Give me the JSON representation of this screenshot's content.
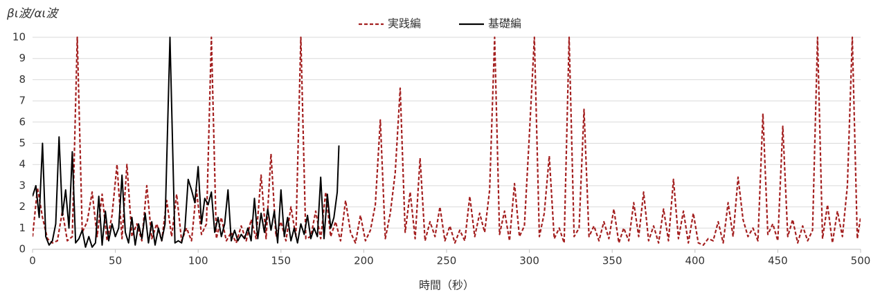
{
  "chart_data": {
    "type": "line",
    "y_label": "βι波/αι波",
    "x_label": "時間（秒）",
    "xlim": [
      0,
      500
    ],
    "xticks": [
      0,
      50,
      100,
      150,
      200,
      250,
      300,
      350,
      400,
      450,
      500
    ],
    "ylim": [
      0,
      10
    ],
    "yticks": [
      0,
      1,
      2,
      3,
      4,
      5,
      6,
      7,
      8,
      9,
      10
    ],
    "grid": true,
    "legend": "top",
    "series": [
      {
        "name": "実践編",
        "color": "#a31f1f",
        "line_style": "dashed",
        "x": [
          0,
          3,
          6,
          9,
          12,
          15,
          18,
          21,
          24,
          27,
          30,
          33,
          36,
          39,
          42,
          45,
          48,
          51,
          54,
          57,
          60,
          63,
          66,
          69,
          72,
          75,
          78,
          81,
          84,
          87,
          90,
          93,
          96,
          99,
          102,
          105,
          108,
          111,
          114,
          117,
          120,
          123,
          126,
          129,
          132,
          135,
          138,
          141,
          144,
          147,
          150,
          153,
          156,
          159,
          162,
          165,
          168,
          171,
          174,
          177,
          180,
          183,
          186,
          189,
          192,
          195,
          198,
          201,
          204,
          207,
          210,
          213,
          216,
          219,
          222,
          225,
          228,
          231,
          234,
          237,
          240,
          243,
          246,
          249,
          252,
          255,
          258,
          261,
          264,
          267,
          270,
          273,
          276,
          279,
          282,
          285,
          288,
          291,
          294,
          297,
          300,
          303,
          306,
          309,
          312,
          315,
          318,
          321,
          324,
          327,
          330,
          333,
          336,
          339,
          342,
          345,
          348,
          351,
          354,
          357,
          360,
          363,
          366,
          369,
          372,
          375,
          378,
          381,
          384,
          387,
          390,
          393,
          396,
          399,
          402,
          405,
          408,
          411,
          414,
          417,
          420,
          423,
          426,
          429,
          432,
          435,
          438,
          441,
          444,
          447,
          450,
          453,
          456,
          459,
          462,
          465,
          468,
          471,
          474,
          477,
          480,
          483,
          486,
          489,
          492,
          495,
          498,
          500
        ],
        "values": [
          0.6,
          2.9,
          1.5,
          0.5,
          0.3,
          0.4,
          1.8,
          0.4,
          0.6,
          10,
          0.8,
          1.3,
          2.7,
          0.6,
          2.6,
          0.4,
          1.6,
          4.0,
          0.5,
          4.0,
          0.6,
          1.2,
          0.4,
          3.0,
          0.5,
          1.2,
          0.4,
          2.3,
          0.6,
          2.6,
          0.4,
          1.0,
          0.4,
          2.8,
          0.7,
          1.2,
          10,
          0.5,
          1.5,
          0.4,
          0.8,
          0.3,
          1.1,
          0.4,
          1.4,
          0.5,
          3.5,
          0.5,
          4.5,
          0.6,
          1.3,
          0.4,
          2.0,
          0.6,
          10,
          0.5,
          0.6,
          1.8,
          0.5,
          2.7,
          0.6,
          1.3,
          0.4,
          2.3,
          0.8,
          0.3,
          1.6,
          0.4,
          0.9,
          2.1,
          6.1,
          0.5,
          1.7,
          3.6,
          7.6,
          0.8,
          2.7,
          0.5,
          4.3,
          0.4,
          1.3,
          0.6,
          2.0,
          0.4,
          1.1,
          0.3,
          0.9,
          0.4,
          2.5,
          0.6,
          1.7,
          0.8,
          2.8,
          10,
          0.7,
          1.8,
          0.4,
          3.1,
          0.6,
          1.1,
          5.4,
          10,
          0.6,
          1.7,
          4.4,
          0.5,
          1.0,
          0.3,
          10,
          0.6,
          1.0,
          6.6,
          0.6,
          1.1,
          0.4,
          1.3,
          0.5,
          1.9,
          0.3,
          1.0,
          0.4,
          2.2,
          0.6,
          2.7,
          0.4,
          1.1,
          0.3,
          1.9,
          0.4,
          3.3,
          0.5,
          1.8,
          0.3,
          1.7,
          0.3,
          0.2,
          0.5,
          0.4,
          1.3,
          0.3,
          2.2,
          0.6,
          3.4,
          1.4,
          0.6,
          1.0,
          0.4,
          6.4,
          0.7,
          1.2,
          0.4,
          5.8,
          0.6,
          1.4,
          0.3,
          1.1,
          0.4,
          0.9,
          10,
          0.5,
          2.1,
          0.3,
          1.8,
          0.6,
          3.0,
          10,
          0.5,
          1.5
        ]
      },
      {
        "name": "基礎編",
        "color": "#000000",
        "line_style": "solid",
        "x": [
          0,
          2,
          4,
          6,
          8,
          10,
          12,
          14,
          16,
          18,
          20,
          22,
          24,
          26,
          28,
          30,
          32,
          34,
          36,
          38,
          40,
          42,
          44,
          46,
          48,
          50,
          52,
          54,
          56,
          58,
          60,
          62,
          64,
          66,
          68,
          70,
          72,
          74,
          76,
          78,
          80,
          83,
          86,
          88,
          90,
          92,
          94,
          96,
          98,
          100,
          102,
          104,
          106,
          108,
          110,
          112,
          114,
          116,
          118,
          120,
          122,
          124,
          126,
          128,
          130,
          132,
          134,
          136,
          138,
          140,
          142,
          144,
          146,
          148,
          150,
          152,
          154,
          156,
          158,
          160,
          162,
          164,
          166,
          168,
          170,
          172,
          174,
          176,
          178,
          180,
          182,
          184,
          185
        ],
        "values": [
          2.5,
          3.0,
          1.5,
          5.0,
          0.6,
          0.2,
          0.4,
          1.2,
          5.3,
          1.6,
          2.8,
          1.0,
          4.6,
          0.3,
          0.5,
          0.9,
          0.1,
          0.6,
          0.1,
          0.3,
          2.5,
          0.2,
          1.8,
          0.4,
          1.2,
          0.6,
          1.0,
          3.5,
          0.8,
          0.3,
          1.5,
          0.2,
          1.2,
          0.5,
          1.7,
          0.3,
          1.3,
          0.2,
          1.0,
          0.4,
          1.2,
          10,
          0.3,
          0.4,
          0.3,
          1.0,
          3.3,
          2.8,
          2.2,
          3.9,
          1.2,
          2.4,
          2.1,
          2.7,
          0.8,
          1.5,
          0.6,
          1.2,
          2.8,
          0.4,
          0.9,
          0.4,
          0.7,
          0.5,
          1.0,
          0.4,
          2.4,
          0.5,
          1.7,
          0.8,
          1.9,
          0.9,
          1.8,
          0.3,
          2.8,
          0.6,
          1.5,
          0.4,
          1.0,
          0.3,
          1.2,
          0.7,
          1.6,
          0.5,
          1.0,
          0.6,
          3.4,
          0.5,
          2.6,
          1.0,
          1.5,
          2.7,
          4.9
        ]
      }
    ]
  }
}
